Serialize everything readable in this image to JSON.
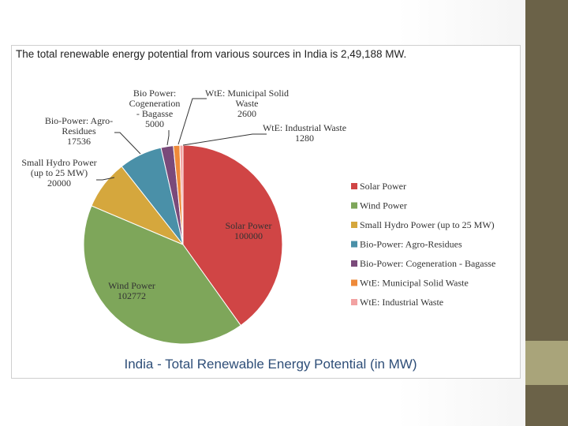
{
  "slide": {
    "headline": "The total renewable energy potential from various sources in India is 2,49,188 MW."
  },
  "chart_data": {
    "type": "pie",
    "title": "India - Total Renewable Energy Potential (in MW)",
    "slices": [
      {
        "label": "Solar Power",
        "value": 100000,
        "color": "#d04545",
        "data_label": [
          "Solar Power",
          "100000"
        ]
      },
      {
        "label": "Wind Power",
        "value": 102772,
        "color": "#7ea65a",
        "data_label": [
          "Wind Power",
          "102772"
        ]
      },
      {
        "label": "Small Hydro Power (up to 25 MW)",
        "value": 20000,
        "color": "#d5a73d",
        "data_label": [
          "Small Hydro Power",
          "(up to 25 MW)",
          "20000"
        ]
      },
      {
        "label": "Bio-Power: Agro-Residues",
        "value": 17536,
        "color": "#4a90a8",
        "data_label": [
          "Bio-Power: Agro-",
          "Residues",
          "17536"
        ]
      },
      {
        "label": "Bio-Power: Cogeneration - Bagasse",
        "value": 5000,
        "color": "#7a4a7a",
        "data_label": [
          "Bio Power:",
          "Cogeneration",
          "- Bagasse",
          "5000"
        ]
      },
      {
        "label": "WtE: Municipal Solid Waste",
        "value": 2600,
        "color": "#ee8a3a",
        "data_label": [
          "WtE: Municipal Solid",
          "Waste",
          "2600"
        ]
      },
      {
        "label": "WtE: Industrial Waste",
        "value": 1280,
        "color": "#f2a2a2",
        "data_label": [
          "WtE: Industrial Waste",
          "1280"
        ]
      }
    ],
    "legend_position": "right"
  }
}
